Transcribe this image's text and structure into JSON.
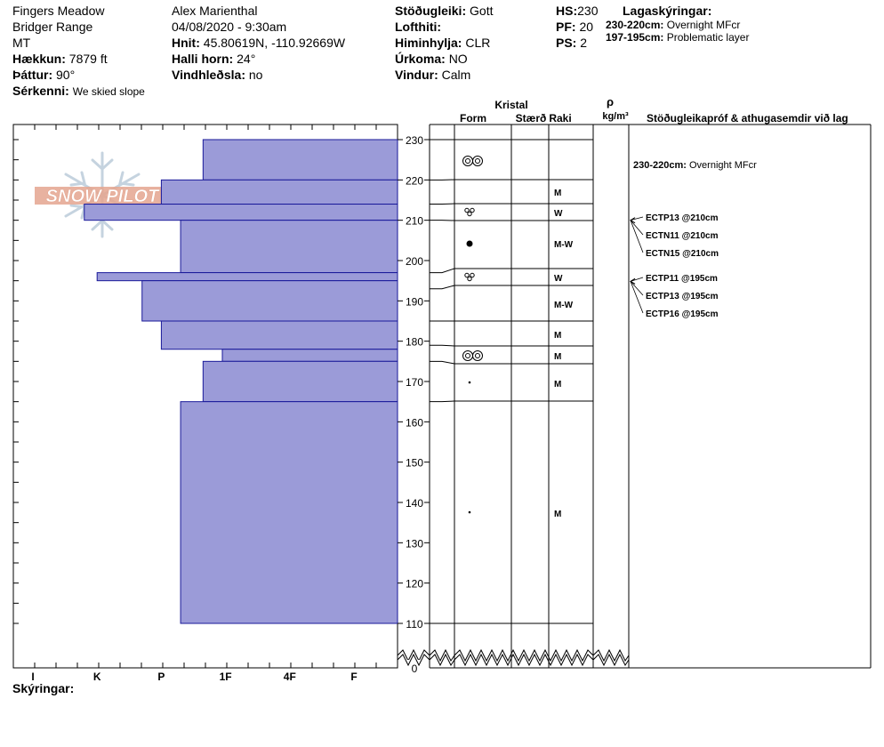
{
  "header": {
    "location": "Fingers Meadow",
    "range": "Bridger Range",
    "state": "MT",
    "elevation_label": "Hækkun:",
    "elevation_value": "7879 ft",
    "aspect_label": "Þáttur:",
    "aspect_value": "90°",
    "specifics_label": "Sérkenni:",
    "specifics_value": "We skied slope",
    "observer": "Alex Marienthal",
    "datetime": "04/08/2020 - 9:30am",
    "coords_label": "Hnit:",
    "coords_value": "45.80619N, -110.92669W",
    "slope_label": "Halli horn:",
    "slope_value": "24°",
    "wind_loading_label": "Vindhleðsla:",
    "wind_loading_value": "no",
    "stability_label": "Stöðugleiki:",
    "stability_value": "Gott",
    "air_temp_label": "Lofthiti:",
    "air_temp_value": "",
    "sky_label": "Himinhylja:",
    "sky_value": "CLR",
    "precip_label": "Úrkoma:",
    "precip_value": "NO",
    "wind_label": "Vindur:",
    "wind_value": "Calm",
    "hs_label": "HS:",
    "hs_value": "230",
    "pf_label": "PF:",
    "pf_value": "20",
    "ps_label": "PS:",
    "ps_value": "2",
    "layer_notes_label": "Lagaskýringar:",
    "layer_notes": [
      {
        "range": "230-220cm:",
        "text": "Overnight MFcr"
      },
      {
        "range": "197-195cm:",
        "text": "Problematic layer"
      }
    ],
    "footer_label": "Skýringar:"
  },
  "columns": {
    "crystal": "Kristal",
    "form": "Form",
    "size": "Stærð",
    "moisture": "Raki",
    "rho": "ρ",
    "density_unit": "kg/m³",
    "tests": "Stöðugleikapróf & athugasemdir við lag"
  },
  "logo_text": "SNOW PILOT",
  "colors": {
    "hardness_fill": "#9b9bd8",
    "hardness_stroke": "#1a1a9a",
    "line": "#000000",
    "logo": "#e4a58f",
    "flake": "#c5d3df"
  },
  "chart_data": {
    "type": "bar",
    "hardness_ticks": [
      "I",
      "K",
      "P",
      "1F",
      "4F",
      "F"
    ],
    "depth_ticks": [
      0,
      110,
      120,
      130,
      140,
      150,
      160,
      170,
      180,
      190,
      200,
      210,
      220,
      230
    ],
    "ylim": [
      110,
      230
    ],
    "hardness_layers": [
      {
        "top": 230,
        "bottom": 220,
        "hardness": 2.65
      },
      {
        "top": 220,
        "bottom": 214,
        "hardness": 2.0
      },
      {
        "top": 214,
        "bottom": 210,
        "hardness": 0.8
      },
      {
        "top": 210,
        "bottom": 197,
        "hardness": 2.3
      },
      {
        "top": 197,
        "bottom": 195,
        "hardness": 1.0
      },
      {
        "top": 195,
        "bottom": 185,
        "hardness": 1.7
      },
      {
        "top": 185,
        "bottom": 178,
        "hardness": 2.0
      },
      {
        "top": 178,
        "bottom": 175,
        "hardness": 2.95
      },
      {
        "top": 175,
        "bottom": 165,
        "hardness": 2.65
      },
      {
        "top": 165,
        "bottom": 110,
        "hardness": 2.3
      }
    ],
    "grain_layers": [
      {
        "top": 230,
        "bottom": 220,
        "form": "melt-freeze",
        "moisture": ""
      },
      {
        "top": 220,
        "bottom": 214,
        "form": "",
        "moisture": "M"
      },
      {
        "top": 214,
        "bottom": 210,
        "form": "melt-cluster",
        "moisture": "W"
      },
      {
        "top": 210,
        "bottom": 197,
        "form": "large-dot",
        "moisture": "M-W"
      },
      {
        "top": 197,
        "bottom": 193,
        "form": "melt-cluster",
        "moisture": "W"
      },
      {
        "top": 193,
        "bottom": 185,
        "form": "",
        "moisture": "M-W"
      },
      {
        "top": 185,
        "bottom": 179,
        "form": "",
        "moisture": "M"
      },
      {
        "top": 179,
        "bottom": 175,
        "form": "melt-freeze",
        "moisture": "M"
      },
      {
        "top": 175,
        "bottom": 165,
        "form": "small-dot",
        "moisture": "M"
      },
      {
        "top": 165,
        "bottom": 110,
        "form": "small-dot",
        "moisture": "M"
      }
    ],
    "tests": [
      {
        "label": "ECTP13 @210cm",
        "depth": 210
      },
      {
        "label": "ECTN11 @210cm",
        "depth": 210
      },
      {
        "label": "ECTN15 @210cm",
        "depth": 210
      },
      {
        "label": "ECTP11 @195cm",
        "depth": 195
      },
      {
        "label": "ECTP13 @195cm",
        "depth": 195
      },
      {
        "label": "ECTP16 @195cm",
        "depth": 195
      }
    ],
    "layer_comment": {
      "range": "230-220cm:",
      "text": "Overnight MFcr",
      "depth": 225
    }
  }
}
